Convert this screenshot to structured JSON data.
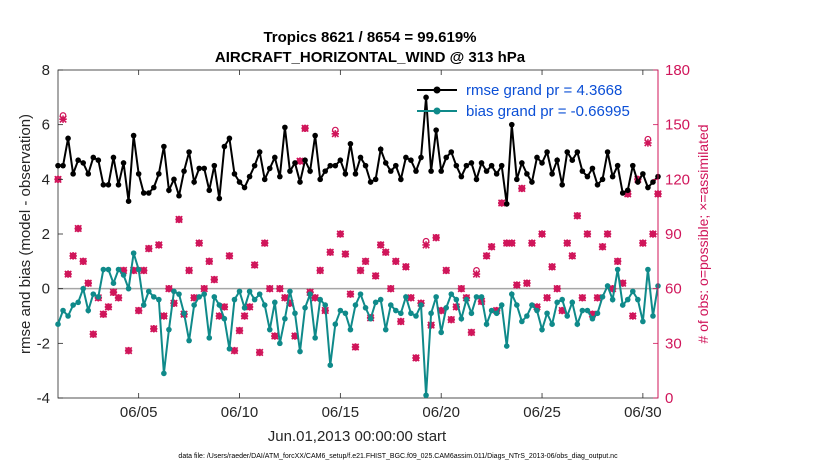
{
  "chart_data": {
    "type": "line",
    "title_line1": "Tropics 8621 / 8654 = 99.619%",
    "title_line2": "AIRCRAFT_HORIZONTAL_WIND @ 313 hPa",
    "xlabel": "Jun.01,2013 00:00:00 start",
    "ylabel_left": "rmse and bias (model - observation)",
    "ylabel_right": "# of obs: o=possible; ×=assimilated",
    "footnote": "data file: /Users/raeder/DAI/ATM_forcXX/CAM6_setup/f.e21.FHIST_BGC.f09_025.CAM6assim.011/Diags_NTrS_2013-06/obs_diag_output.nc",
    "xlim": [
      1,
      30.75
    ],
    "ylim_left": [
      -4,
      8
    ],
    "ylim_right": [
      0,
      180
    ],
    "x_ticks": [
      5,
      10,
      15,
      20,
      25,
      30
    ],
    "x_tick_labels": [
      "06/05",
      "06/10",
      "06/15",
      "06/20",
      "06/25",
      "06/30"
    ],
    "y_ticks_left": [
      -4,
      -2,
      0,
      2,
      4,
      6,
      8
    ],
    "y_tick_labels_left": [
      "-4",
      "-2",
      "0",
      "2",
      "4",
      "6",
      "8"
    ],
    "y_ticks_right": [
      0,
      30,
      60,
      90,
      120,
      150,
      180
    ],
    "y_tick_labels_right": [
      "0",
      "30",
      "60",
      "90",
      "120",
      "150",
      "180"
    ],
    "legend": {
      "position": "top-right",
      "entries": [
        "rmse grand pr = 4.3668",
        "bias grand pr = -0.66995"
      ]
    },
    "colors": {
      "rmse": "#000000",
      "bias": "#0f8a8a",
      "obs": "#d0155a",
      "legend_text": "#0b4fd6",
      "zero_line": "#a6a6a6"
    },
    "series": [
      {
        "name": "rmse",
        "x": [
          1.0,
          1.25,
          1.5,
          1.75,
          2.0,
          2.25,
          2.5,
          2.75,
          3.0,
          3.25,
          3.5,
          3.75,
          4.0,
          4.25,
          4.5,
          4.75,
          5.0,
          5.25,
          5.5,
          5.75,
          6.0,
          6.25,
          6.5,
          6.75,
          7.0,
          7.25,
          7.5,
          7.75,
          8.0,
          8.25,
          8.5,
          8.75,
          9.0,
          9.25,
          9.5,
          9.75,
          10.0,
          10.25,
          10.5,
          10.75,
          11.0,
          11.25,
          11.5,
          11.75,
          12.0,
          12.25,
          12.5,
          12.75,
          13.0,
          13.25,
          13.5,
          13.75,
          14.0,
          14.25,
          14.5,
          14.75,
          15.0,
          15.25,
          15.5,
          15.75,
          16.0,
          16.25,
          16.5,
          16.75,
          17.0,
          17.25,
          17.5,
          17.75,
          18.0,
          18.25,
          18.5,
          18.75,
          19.0,
          19.25,
          19.5,
          19.75,
          20.0,
          20.25,
          20.5,
          20.75,
          21.0,
          21.25,
          21.5,
          21.75,
          22.0,
          22.25,
          22.5,
          22.75,
          23.0,
          23.25,
          23.5,
          23.75,
          24.0,
          24.25,
          24.5,
          24.75,
          25.0,
          25.25,
          25.5,
          25.75,
          26.0,
          26.25,
          26.5,
          26.75,
          27.0,
          27.25,
          27.5,
          27.75,
          28.0,
          28.25,
          28.5,
          28.75,
          29.0,
          29.25,
          29.5,
          29.75,
          30.0,
          30.25,
          30.5,
          30.75
        ],
        "values": [
          4.5,
          4.5,
          5.5,
          4.2,
          4.7,
          4.6,
          4.2,
          4.8,
          4.7,
          3.8,
          3.8,
          4.8,
          3.8,
          4.6,
          3.2,
          5.6,
          4.2,
          3.5,
          3.5,
          3.7,
          4.2,
          5.2,
          3.6,
          4.0,
          3.4,
          4.3,
          5.0,
          3.9,
          4.4,
          4.4,
          3.6,
          4.5,
          3.3,
          5.2,
          5.5,
          4.2,
          3.9,
          3.7,
          4.1,
          4.5,
          5.0,
          4.0,
          4.4,
          4.8,
          4.1,
          5.9,
          4.3,
          4.6,
          3.9,
          4.7,
          4.3,
          5.6,
          4.0,
          4.3,
          4.5,
          4.5,
          4.7,
          4.2,
          5.3,
          4.2,
          4.8,
          4.5,
          3.9,
          4.0,
          5.1,
          4.6,
          4.3,
          4.5,
          4.0,
          4.8,
          4.7,
          4.3,
          4.8,
          7.0,
          4.3,
          5.8,
          4.3,
          4.8,
          5.0,
          4.5,
          4.1,
          4.5,
          4.6,
          4.0,
          4.6,
          4.3,
          4.5,
          4.2,
          4.5,
          3.1,
          6.0,
          4.0,
          4.6,
          4.2,
          3.9,
          4.8,
          4.6,
          5.0,
          4.2,
          4.7,
          3.8,
          5.0,
          4.7,
          5.0,
          4.3,
          4.1,
          4.4,
          3.8,
          4.0,
          5.0,
          4.1,
          4.5,
          3.5,
          3.6,
          4.5,
          3.9,
          4.2,
          3.7,
          3.9,
          4.1
        ]
      },
      {
        "name": "bias",
        "x": [
          1.0,
          1.25,
          1.5,
          1.75,
          2.0,
          2.25,
          2.5,
          2.75,
          3.0,
          3.25,
          3.5,
          3.75,
          4.0,
          4.25,
          4.5,
          4.75,
          5.0,
          5.25,
          5.5,
          5.75,
          6.0,
          6.25,
          6.5,
          6.75,
          7.0,
          7.25,
          7.5,
          7.75,
          8.0,
          8.25,
          8.5,
          8.75,
          9.0,
          9.25,
          9.5,
          9.75,
          10.0,
          10.25,
          10.5,
          10.75,
          11.0,
          11.25,
          11.5,
          11.75,
          12.0,
          12.25,
          12.5,
          12.75,
          13.0,
          13.25,
          13.5,
          13.75,
          14.0,
          14.25,
          14.5,
          14.75,
          15.0,
          15.25,
          15.5,
          15.75,
          16.0,
          16.25,
          16.5,
          16.75,
          17.0,
          17.25,
          17.5,
          17.75,
          18.0,
          18.25,
          18.5,
          18.75,
          19.0,
          19.25,
          19.5,
          19.75,
          20.0,
          20.25,
          20.5,
          20.75,
          21.0,
          21.25,
          21.5,
          21.75,
          22.0,
          22.25,
          22.5,
          22.75,
          23.0,
          23.25,
          23.5,
          23.75,
          24.0,
          24.25,
          24.5,
          24.75,
          25.0,
          25.25,
          25.5,
          25.75,
          26.0,
          26.25,
          26.5,
          26.75,
          27.0,
          27.25,
          27.5,
          27.75,
          28.0,
          28.25,
          28.5,
          28.75,
          29.0,
          29.25,
          29.5,
          29.75,
          30.0,
          30.25,
          30.5,
          30.75
        ],
        "values": [
          -1.3,
          -0.8,
          -1.0,
          -0.6,
          -0.5,
          0.0,
          -0.8,
          -0.2,
          -0.3,
          0.7,
          0.7,
          0.2,
          0.7,
          0.5,
          0.0,
          1.3,
          0.7,
          -0.6,
          -0.1,
          -0.3,
          -0.4,
          -3.1,
          -1.5,
          -0.1,
          -0.2,
          -0.9,
          -1.9,
          -0.6,
          -0.3,
          -0.2,
          -1.8,
          -0.3,
          -0.6,
          -1.1,
          -2.2,
          -0.4,
          -0.1,
          -0.7,
          -0.1,
          -0.4,
          -0.2,
          -0.6,
          -1.5,
          -0.5,
          -2.0,
          -1.1,
          -0.1,
          -0.9,
          -2.3,
          -0.7,
          -0.2,
          -1.8,
          -0.4,
          -0.6,
          -2.8,
          -1.3,
          -0.8,
          -0.9,
          -1.5,
          -0.6,
          -0.2,
          -0.7,
          -1.1,
          -0.5,
          -0.4,
          -1.5,
          -0.6,
          -0.8,
          -0.9,
          -0.3,
          -0.9,
          -1.0,
          -0.6,
          -3.9,
          -0.9,
          -0.3,
          -1.6,
          -0.7,
          -0.2,
          -0.4,
          -1.1,
          -0.4,
          -0.9,
          -0.3,
          -0.3,
          -1.3,
          -0.8,
          -0.9,
          -0.6,
          -2.1,
          -0.2,
          -0.6,
          -1.2,
          -1.0,
          -0.6,
          -0.8,
          -1.5,
          -0.9,
          -1.3,
          -0.5,
          -0.4,
          -1.0,
          -0.5,
          -1.3,
          -0.8,
          -0.8,
          -1.1,
          -0.9,
          -0.3,
          0.1,
          -0.4,
          0.7,
          -0.6,
          -0.4,
          -0.1,
          -0.4,
          -1.2,
          0.7,
          -1.0,
          0.1
        ]
      },
      {
        "name": "# obs possible",
        "x": [
          1.0,
          1.25,
          1.5,
          1.75,
          2.0,
          2.25,
          2.5,
          2.75,
          3.0,
          3.25,
          3.5,
          3.75,
          4.0,
          4.25,
          4.5,
          4.75,
          5.0,
          5.25,
          5.5,
          5.75,
          6.0,
          6.25,
          6.5,
          6.75,
          7.0,
          7.25,
          7.5,
          7.75,
          8.0,
          8.25,
          8.5,
          8.75,
          9.0,
          9.25,
          9.5,
          9.75,
          10.0,
          10.25,
          10.5,
          10.75,
          11.0,
          11.25,
          11.5,
          11.75,
          12.0,
          12.25,
          12.5,
          12.75,
          13.0,
          13.25,
          13.5,
          13.75,
          14.0,
          14.25,
          14.5,
          14.75,
          15.0,
          15.25,
          15.5,
          15.75,
          16.0,
          16.25,
          16.5,
          16.75,
          17.0,
          17.25,
          17.5,
          17.75,
          18.0,
          18.25,
          18.5,
          18.75,
          19.0,
          19.25,
          19.5,
          19.75,
          20.0,
          20.25,
          20.5,
          20.75,
          21.0,
          21.25,
          21.5,
          21.75,
          22.0,
          22.25,
          22.5,
          22.75,
          23.0,
          23.25,
          23.5,
          23.75,
          24.0,
          24.25,
          24.5,
          24.75,
          25.0,
          25.25,
          25.5,
          25.75,
          26.0,
          26.25,
          26.5,
          26.75,
          27.0,
          27.25,
          27.5,
          27.75,
          28.0,
          28.25,
          28.5,
          28.75,
          29.0,
          29.25,
          29.5,
          29.75,
          30.0,
          30.25,
          30.5,
          30.75
        ],
        "values": [
          120,
          155,
          68,
          78,
          93,
          75,
          63,
          35,
          55,
          46,
          50,
          58,
          55,
          70,
          26,
          70,
          48,
          70,
          82,
          38,
          84,
          45,
          60,
          52,
          98,
          46,
          70,
          55,
          85,
          60,
          75,
          65,
          45,
          50,
          78,
          26,
          37,
          45,
          50,
          73,
          25,
          85,
          60,
          34,
          60,
          55,
          52,
          34,
          130,
          148,
          58,
          55,
          70,
          48,
          80,
          147,
          90,
          79,
          57,
          28,
          70,
          75,
          44,
          67,
          84,
          80,
          60,
          75,
          42,
          72,
          55,
          22,
          52,
          86,
          40,
          88,
          48,
          70,
          43,
          50,
          60,
          55,
          36,
          70,
          53,
          78,
          83,
          48,
          107,
          85,
          85,
          62,
          115,
          63,
          85,
          50,
          90,
          55,
          72,
          60,
          48,
          85,
          78,
          100,
          55,
          90,
          46,
          55,
          83,
          90,
          60,
          75,
          63,
          112,
          45,
          120,
          85,
          142,
          90,
          112
        ]
      },
      {
        "name": "# obs assimilated",
        "x": [
          1.0,
          1.25,
          1.5,
          1.75,
          2.0,
          2.25,
          2.5,
          2.75,
          3.0,
          3.25,
          3.5,
          3.75,
          4.0,
          4.25,
          4.5,
          4.75,
          5.0,
          5.25,
          5.5,
          5.75,
          6.0,
          6.25,
          6.5,
          6.75,
          7.0,
          7.25,
          7.5,
          7.75,
          8.0,
          8.25,
          8.5,
          8.75,
          9.0,
          9.25,
          9.5,
          9.75,
          10.0,
          10.25,
          10.5,
          10.75,
          11.0,
          11.25,
          11.5,
          11.75,
          12.0,
          12.25,
          12.5,
          12.75,
          13.0,
          13.25,
          13.5,
          13.75,
          14.0,
          14.25,
          14.5,
          14.75,
          15.0,
          15.25,
          15.5,
          15.75,
          16.0,
          16.25,
          16.5,
          16.75,
          17.0,
          17.25,
          17.5,
          17.75,
          18.0,
          18.25,
          18.5,
          18.75,
          19.0,
          19.25,
          19.5,
          19.75,
          20.0,
          20.25,
          20.5,
          20.75,
          21.0,
          21.25,
          21.5,
          21.75,
          22.0,
          22.25,
          22.5,
          22.75,
          23.0,
          23.25,
          23.5,
          23.75,
          24.0,
          24.25,
          24.5,
          24.75,
          25.0,
          25.25,
          25.5,
          25.75,
          26.0,
          26.25,
          26.5,
          26.75,
          27.0,
          27.25,
          27.5,
          27.75,
          28.0,
          28.25,
          28.5,
          28.75,
          29.0,
          29.25,
          29.5,
          29.75,
          30.0,
          30.25,
          30.5,
          30.75
        ],
        "values": [
          120,
          153,
          68,
          78,
          93,
          75,
          63,
          35,
          55,
          46,
          50,
          58,
          55,
          70,
          26,
          70,
          48,
          70,
          82,
          38,
          84,
          45,
          60,
          52,
          98,
          46,
          70,
          55,
          85,
          60,
          75,
          65,
          45,
          50,
          78,
          26,
          37,
          45,
          50,
          73,
          25,
          85,
          60,
          34,
          60,
          55,
          52,
          34,
          130,
          148,
          58,
          55,
          70,
          48,
          80,
          145,
          90,
          79,
          57,
          28,
          70,
          75,
          44,
          67,
          84,
          80,
          60,
          75,
          42,
          72,
          55,
          22,
          52,
          84,
          40,
          88,
          48,
          70,
          43,
          50,
          60,
          55,
          36,
          68,
          53,
          78,
          83,
          48,
          107,
          85,
          85,
          62,
          115,
          63,
          85,
          50,
          90,
          55,
          72,
          60,
          48,
          85,
          78,
          100,
          55,
          90,
          46,
          55,
          83,
          90,
          60,
          75,
          63,
          112,
          45,
          120,
          85,
          140,
          90,
          112
        ]
      }
    ]
  }
}
